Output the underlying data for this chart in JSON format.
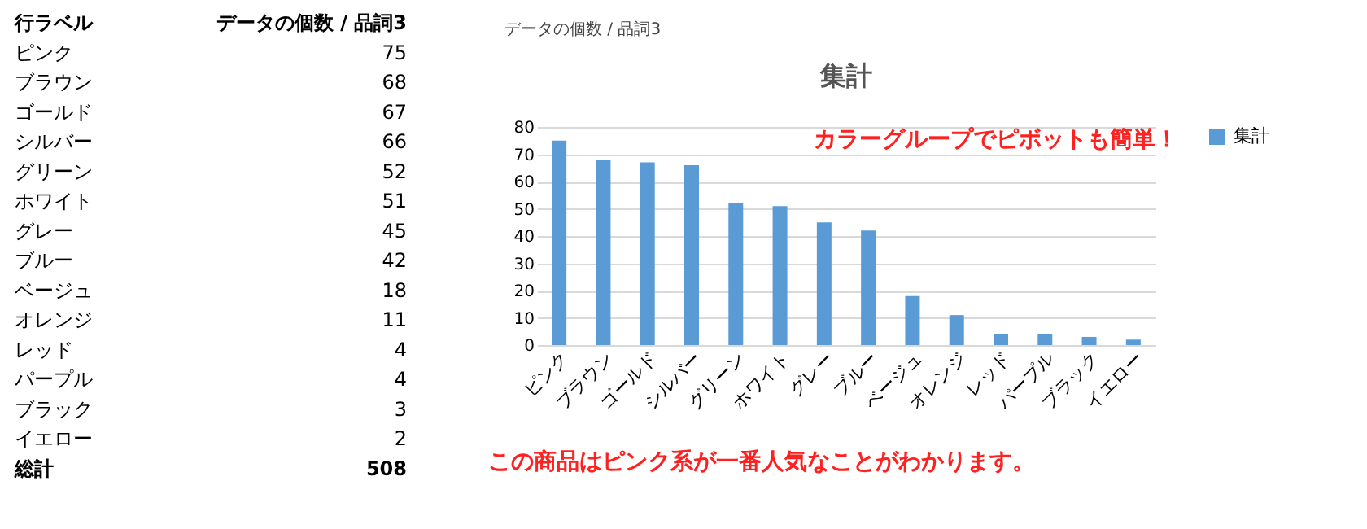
{
  "chart_data": [
    {
      "type": "other",
      "categories": [
        "ピンク",
        "ブラウン",
        "ゴールド",
        "シルバー",
        "グリーン",
        "ホワイト",
        "グレー",
        "ブルー",
        "ベージュ",
        "オレンジ",
        "レッド",
        "パープル",
        "ブラック",
        "イエロー"
      ],
      "values": [
        75,
        68,
        67,
        66,
        52,
        51,
        45,
        42,
        18,
        11,
        4,
        4,
        3,
        2
      ],
      "data_labels": true,
      "annotations": [
        "行ラベル",
        "データの個数 / 品詞3",
        "総計",
        "508"
      ]
    },
    {
      "type": "bar",
      "title": "集計",
      "categories": [
        "ピンク",
        "ブラウン",
        "ゴールド",
        "シルバー",
        "グリーン",
        "ホワイト",
        "グレー",
        "ブルー",
        "ベージュ",
        "オレンジ",
        "レッド",
        "パープル",
        "ブラック",
        "イエロー"
      ],
      "series": [
        {
          "name": "集計",
          "color": "#5b9bd5",
          "values": [
            75,
            68,
            67,
            66,
            52,
            51,
            45,
            42,
            18,
            11,
            4,
            4,
            3,
            2
          ]
        }
      ],
      "ylim": [
        0,
        80
      ],
      "yticks": [
        0,
        10,
        20,
        30,
        40,
        50,
        60,
        70,
        80
      ],
      "grid": "y",
      "legend": "right",
      "annotations": [
        "データの個数 / 品詞3",
        "カラーグループでピボットも簡単！",
        "この商品はピンク系が一番人気なことがわかります。"
      ]
    }
  ]
}
